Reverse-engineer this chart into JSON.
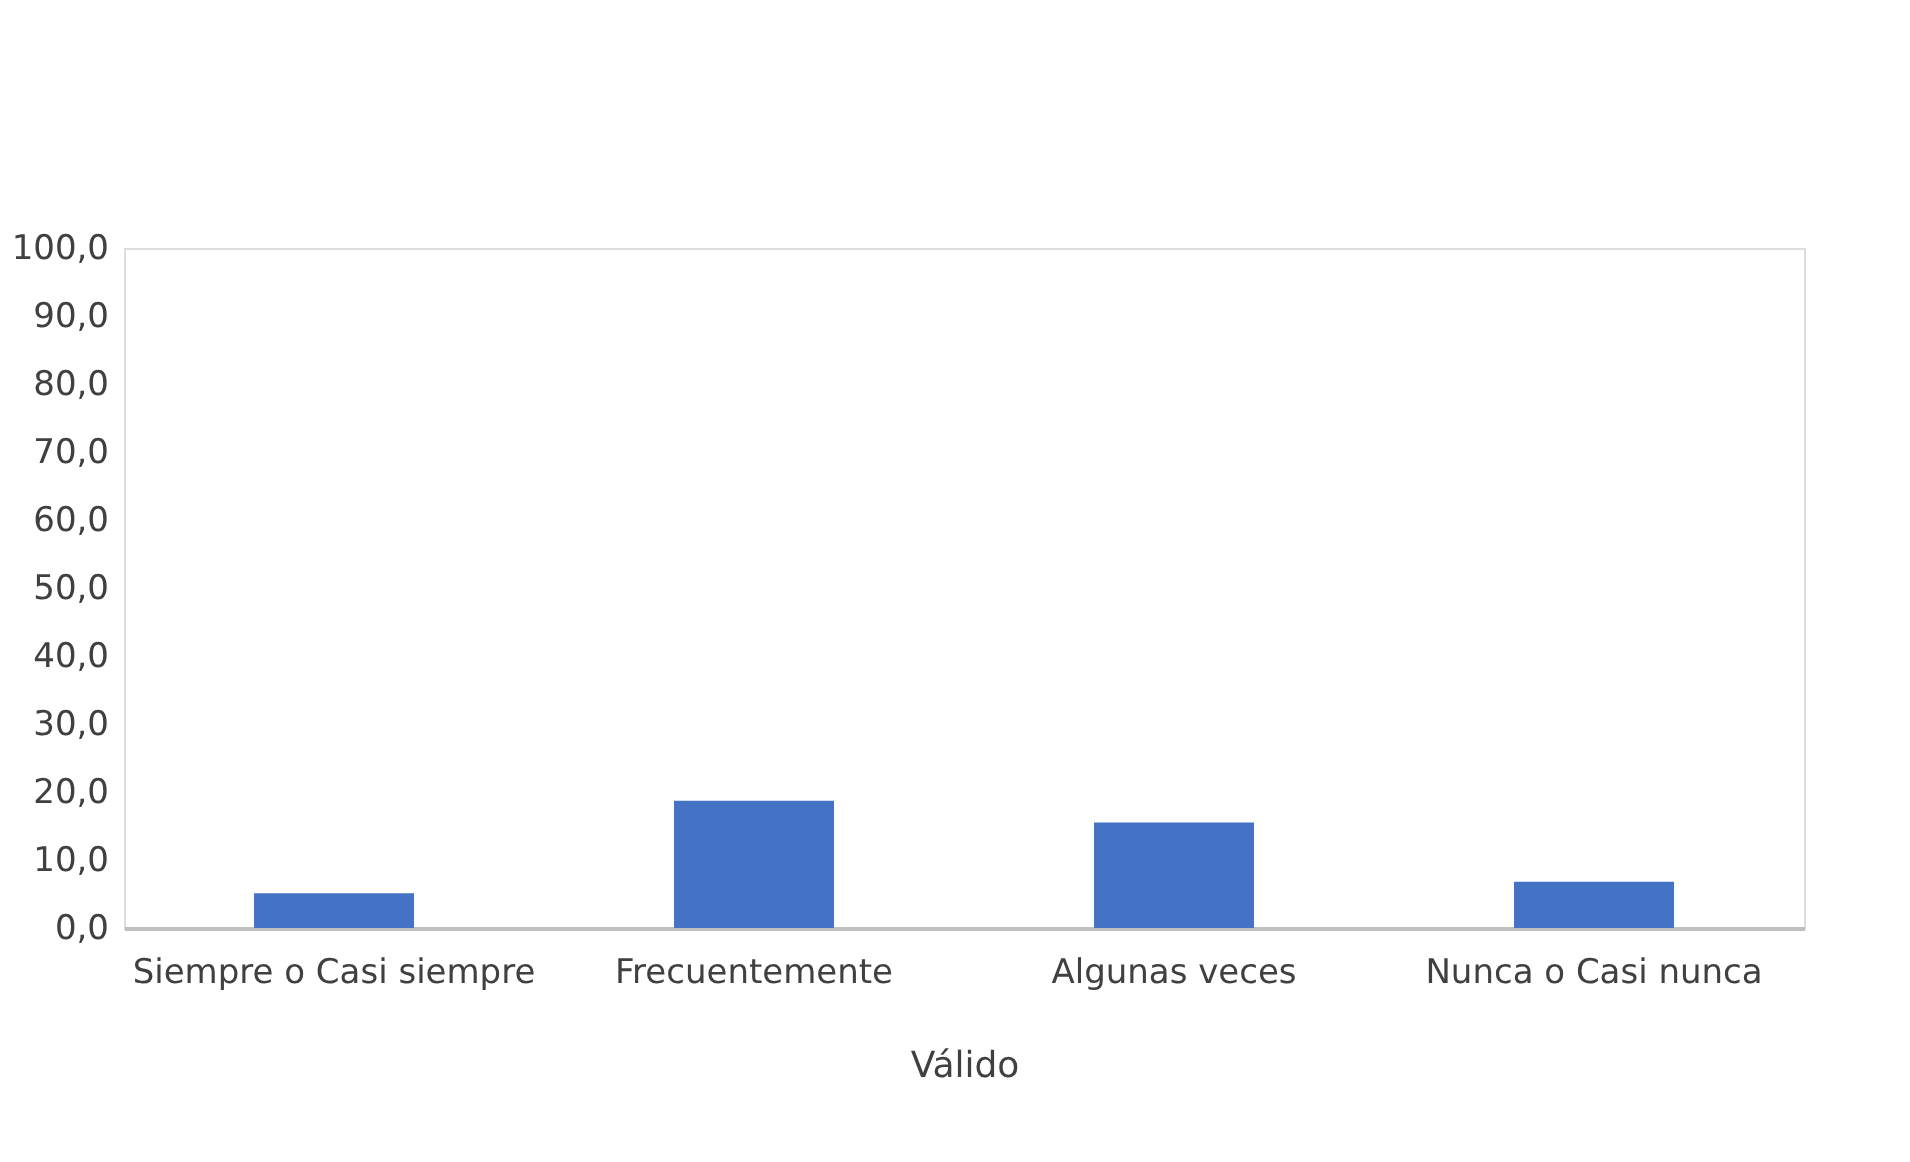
{
  "chart_data": {
    "type": "bar",
    "xlabel": "Válido",
    "categories": [
      "Siempre o Casi siempre",
      "Frecuentemente",
      "Algunas veces",
      "Nunca o Casi nunca"
    ],
    "values": [
      5.1,
      18.7,
      15.5,
      6.8
    ],
    "color": "#4472c4",
    "ylim": [
      0,
      100
    ],
    "yticks": [
      {
        "value": 0,
        "label": "0,0"
      },
      {
        "value": 10,
        "label": "10,0"
      },
      {
        "value": 20,
        "label": "20,0"
      },
      {
        "value": 30,
        "label": "30,0"
      },
      {
        "value": 40,
        "label": "40,0"
      },
      {
        "value": 50,
        "label": "50,0"
      },
      {
        "value": 60,
        "label": "60,0"
      },
      {
        "value": 70,
        "label": "70,0"
      },
      {
        "value": 80,
        "label": "80,0"
      },
      {
        "value": 90,
        "label": "90,0"
      },
      {
        "value": 100,
        "label": "100,0"
      }
    ],
    "grid": false
  }
}
